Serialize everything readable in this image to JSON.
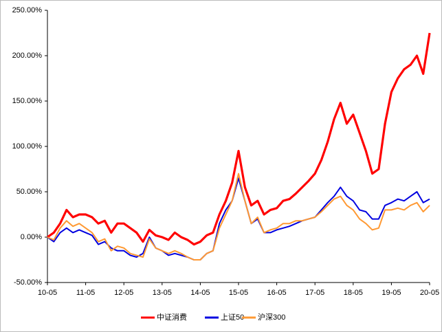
{
  "chart_data": {
    "type": "line",
    "categories": [
      "10-05",
      null,
      null,
      null,
      null,
      null,
      "11-05",
      null,
      null,
      null,
      null,
      null,
      "12-05",
      null,
      null,
      null,
      null,
      null,
      "13-05",
      null,
      null,
      null,
      null,
      null,
      "14-05",
      null,
      null,
      null,
      null,
      null,
      "15-05",
      null,
      null,
      null,
      null,
      null,
      "16-05",
      null,
      null,
      null,
      null,
      null,
      "17-05",
      null,
      null,
      null,
      null,
      null,
      "18-05",
      null,
      null,
      null,
      null,
      null,
      "19-05",
      null,
      null,
      null,
      null,
      null,
      "20-05"
    ],
    "series": [
      {
        "name": "中证消费",
        "color": "#ff0000",
        "values": [
          0,
          5,
          15,
          30,
          22,
          25,
          25,
          22,
          15,
          18,
          5,
          15,
          15,
          10,
          5,
          -5,
          8,
          2,
          0,
          -3,
          5,
          0,
          -3,
          -8,
          -5,
          2,
          5,
          25,
          40,
          60,
          95,
          55,
          35,
          40,
          25,
          30,
          32,
          40,
          42,
          48,
          55,
          62,
          70,
          85,
          105,
          130,
          148,
          125,
          135,
          115,
          95,
          70,
          75,
          125,
          160,
          175,
          185,
          190,
          200,
          180,
          225
        ]
      },
      {
        "name": "上证50",
        "color": "#0000e0",
        "values": [
          0,
          -5,
          5,
          10,
          5,
          8,
          5,
          2,
          -8,
          -5,
          -12,
          -15,
          -15,
          -20,
          -22,
          -18,
          0,
          -12,
          -15,
          -20,
          -18,
          -20,
          -22,
          -25,
          -25,
          -18,
          -15,
          15,
          30,
          40,
          65,
          40,
          15,
          20,
          5,
          5,
          8,
          10,
          12,
          15,
          18,
          20,
          22,
          30,
          38,
          45,
          55,
          45,
          40,
          30,
          28,
          20,
          20,
          35,
          38,
          42,
          40,
          45,
          50,
          38,
          42
        ]
      },
      {
        "name": "沪深300",
        "color": "#ff9933",
        "values": [
          0,
          -3,
          10,
          18,
          12,
          15,
          10,
          5,
          -5,
          -2,
          -15,
          -10,
          -12,
          -18,
          -20,
          -22,
          -2,
          -12,
          -15,
          -18,
          -15,
          -18,
          -22,
          -25,
          -25,
          -18,
          -15,
          10,
          25,
          40,
          70,
          40,
          15,
          22,
          5,
          8,
          10,
          15,
          15,
          18,
          18,
          20,
          22,
          28,
          35,
          42,
          45,
          35,
          30,
          20,
          15,
          8,
          10,
          30,
          30,
          32,
          30,
          35,
          38,
          28,
          35
        ]
      }
    ],
    "ylim": [
      -50,
      250
    ],
    "yticks": [
      {
        "value": -50,
        "label": "-50.00%"
      },
      {
        "value": 0,
        "label": "0.00%"
      },
      {
        "value": 50,
        "label": "50.00%"
      },
      {
        "value": 100,
        "label": "100.00%"
      },
      {
        "value": 150,
        "label": "150.00%"
      },
      {
        "value": 200,
        "label": "200.00%"
      },
      {
        "value": 250,
        "label": "250.00%"
      }
    ],
    "grid": false,
    "legend": "bottom"
  }
}
